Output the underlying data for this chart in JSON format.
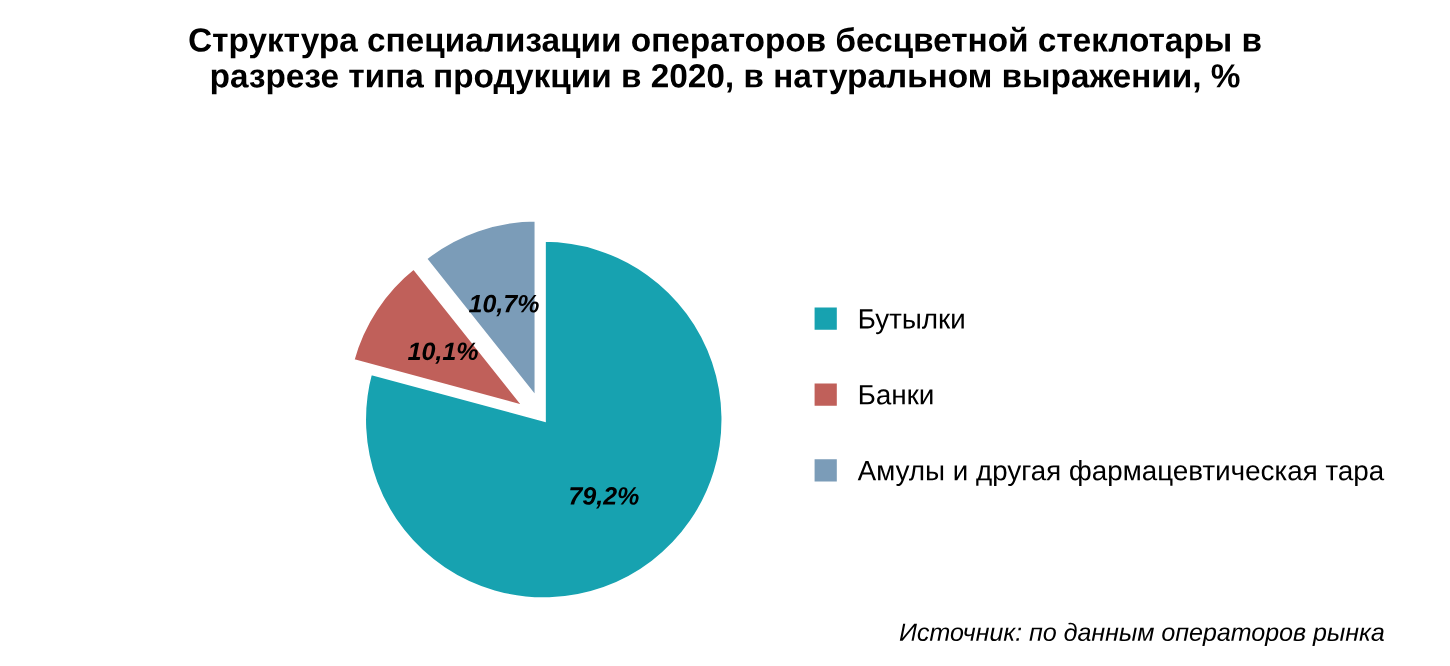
{
  "chart_data": {
    "type": "pie",
    "title": "Структура специализации операторов бесцветной стеклотары в\nразрезе типа продукции в 2020, в натуральном выражении, %",
    "categories": [
      "Бутылки",
      "Банки",
      "Амулы и другая фармацевтическая тара"
    ],
    "values": [
      79.2,
      10.1,
      10.7
    ],
    "value_labels": [
      "79,2%",
      "10,1%",
      "10,7%"
    ],
    "colors": [
      "#17a2b0",
      "#c0605a",
      "#7b9cb8"
    ],
    "legend": "right",
    "annotations": [
      "Источник: по данным операторов рынка"
    ]
  }
}
